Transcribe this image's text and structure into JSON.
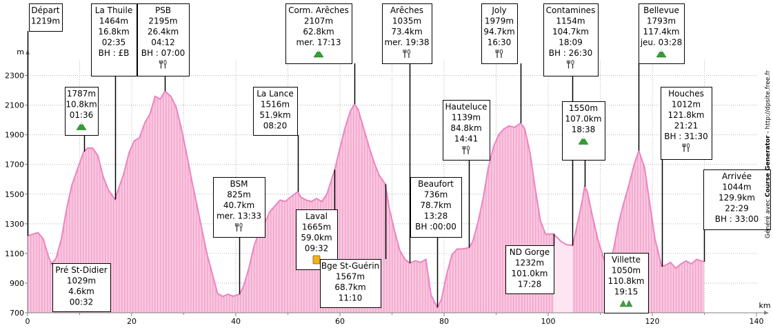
{
  "chart_data": {
    "type": "area",
    "title": "",
    "xlabel": "km",
    "ylabel": "m",
    "xlim": [
      0,
      140
    ],
    "ylim": [
      700,
      2400
    ],
    "xticks": [
      0,
      20,
      40,
      60,
      80,
      100,
      120,
      140
    ],
    "yticks": [
      700,
      900,
      1100,
      1300,
      1500,
      1700,
      1900,
      2100,
      2300
    ],
    "grid": true,
    "colors": {
      "fill": "#f9c8e0",
      "fill_dark": "#f2a6cc",
      "line": "#ee82c0",
      "grid": "#b0b0b0",
      "frame": "#808080",
      "marker": "#000000",
      "section_pale": "#fde6f1"
    },
    "profile": {
      "x": [
        0,
        1,
        2,
        3,
        4,
        4.6,
        5.5,
        6.5,
        7.5,
        8.5,
        9.5,
        10.8,
        11.5,
        12.5,
        13.5,
        14.5,
        15.5,
        16.8,
        17.5,
        18.5,
        19.5,
        20.5,
        21.5,
        22.5,
        23.5,
        24.5,
        25.5,
        26.4,
        27.5,
        28.5,
        29.5,
        30.5,
        31.5,
        32.5,
        33.5,
        34.5,
        35.5,
        36.5,
        37.5,
        38.5,
        39.5,
        40.7,
        41.5,
        42.5,
        43.5,
        44.5,
        45.5,
        46.5,
        47.5,
        48.5,
        49.5,
        50.5,
        51.9,
        52.5,
        53.5,
        54.5,
        55.5,
        56.5,
        57.5,
        59.0,
        60,
        61,
        62,
        62.8,
        63.5,
        64.5,
        65.5,
        66.5,
        67.5,
        68.7,
        69.5,
        70.5,
        71.5,
        72.5,
        73.4,
        74.5,
        75.5,
        76.5,
        77.5,
        78.7,
        79.5,
        80.5,
        81.5,
        82.5,
        83.5,
        84.8,
        85.5,
        86.5,
        87.5,
        88.5,
        89.5,
        90.5,
        91.5,
        92.5,
        93.5,
        94.7,
        95.5,
        96.5,
        97.5,
        98.5,
        99.5,
        101.0,
        102.5,
        103.5,
        104.7,
        105.5,
        106.5,
        107.0,
        107.5,
        108.5,
        109.5,
        110.8,
        111.5,
        112.5,
        113.5,
        114.5,
        115.5,
        116.5,
        117.4,
        118.5,
        119.5,
        120.5,
        121.8,
        122.5,
        123.5,
        124.5,
        125.5,
        126.5,
        127.5,
        128.5,
        129.9
      ],
      "y": [
        1219,
        1230,
        1240,
        1200,
        1080,
        1029,
        1070,
        1200,
        1400,
        1560,
        1660,
        1787,
        1810,
        1810,
        1760,
        1620,
        1530,
        1464,
        1540,
        1640,
        1780,
        1860,
        1880,
        1980,
        2040,
        2160,
        2140,
        2195,
        2160,
        2090,
        1950,
        1780,
        1600,
        1430,
        1260,
        1090,
        960,
        830,
        810,
        825,
        812,
        825,
        880,
        1000,
        1150,
        1250,
        1300,
        1380,
        1420,
        1460,
        1450,
        1480,
        1516,
        1480,
        1460,
        1450,
        1470,
        1450,
        1500,
        1665,
        1810,
        1950,
        2060,
        2107,
        2070,
        1950,
        1830,
        1720,
        1630,
        1567,
        1400,
        1250,
        1120,
        1060,
        1035,
        1050,
        1040,
        1060,
        820,
        736,
        790,
        960,
        1090,
        1130,
        1130,
        1139,
        1180,
        1310,
        1470,
        1680,
        1820,
        1900,
        1940,
        1960,
        1950,
        1979,
        1940,
        1780,
        1540,
        1320,
        1230,
        1232,
        1180,
        1160,
        1154,
        1280,
        1450,
        1550,
        1520,
        1350,
        1200,
        1050,
        1010,
        1120,
        1300,
        1440,
        1560,
        1700,
        1793,
        1680,
        1440,
        1200,
        1012,
        1020,
        1040,
        1000,
        1030,
        1050,
        1030,
        1060,
        1044
      ]
    },
    "pale_section": [
      101.0,
      104.7
    ],
    "annotations": [
      {
        "lines": [
          "Départ",
          "1219m"
        ],
        "km": 0,
        "icon": ""
      },
      {
        "lines": [
          "La Thuile",
          "1464m",
          "16.8km",
          "02:35",
          "BH : £B"
        ],
        "km": 16.8,
        "icon": ""
      },
      {
        "lines": [
          "PSB",
          "2195m",
          "26.4km",
          "04:12",
          "BH : 07:00"
        ],
        "km": 26.4,
        "icon": "cutlery"
      },
      {
        "lines": [
          "Corm. Arêches",
          "2107m",
          "62.8km",
          "mer. 17:13"
        ],
        "km": 62.8,
        "icon": "mountain"
      },
      {
        "lines": [
          "Arêches",
          "1035m",
          "73.4km",
          "mer. 19:38"
        ],
        "km": 73.4,
        "icon": "cutlery"
      },
      {
        "lines": [
          "Joly",
          "1979m",
          "94.7km",
          "16:30"
        ],
        "km": 94.7,
        "icon": "cutlery"
      },
      {
        "lines": [
          "Contamines",
          "1154m",
          "104.7km",
          "18:09",
          "BH : 26:30"
        ],
        "km": 104.7,
        "icon": "cutlery"
      },
      {
        "lines": [
          "Bellevue",
          "1793m",
          "117.4km",
          "jeu. 03:28"
        ],
        "km": 117.4,
        "icon": "mountain"
      },
      {
        "lines": [
          "1787m",
          "10.8km",
          "01:36"
        ],
        "km": 10.8,
        "icon": "mountain"
      },
      {
        "lines": [
          "La Lance",
          "1516m",
          "51.9km",
          "08:20"
        ],
        "km": 51.9,
        "icon": ""
      },
      {
        "lines": [
          "Hauteluce",
          "1139m",
          "84.8km",
          "14:41"
        ],
        "km": 84.8,
        "icon": "cutlery"
      },
      {
        "lines": [
          "1550m",
          "107.0km",
          "18:38"
        ],
        "km": 107.0,
        "icon": "mountain"
      },
      {
        "lines": [
          "Houches",
          "1012m",
          "121.8km",
          "21:21",
          "BH : 31:30"
        ],
        "km": 121.8,
        "icon": "cutlery"
      },
      {
        "lines": [
          "BSM",
          "825m",
          "40.7km",
          "mer. 13:33"
        ],
        "km": 40.7,
        "icon": "cutlery"
      },
      {
        "lines": [
          "Laval",
          "1665m",
          "59.0km",
          "09:32"
        ],
        "km": 59.0,
        "icon": "drink"
      },
      {
        "lines": [
          "Beaufort",
          "736m",
          "78.7km",
          "13:28",
          "BH :00:00"
        ],
        "km": 78.7,
        "icon": ""
      },
      {
        "lines": [
          "Arrivée",
          "1044m",
          "129.9km",
          "22:29",
          "BH : 33:00"
        ],
        "km": 129.9,
        "icon": ""
      },
      {
        "lines": [
          "Pré St-Didier",
          "1029m",
          "4.6km",
          "00:32"
        ],
        "km": 4.6,
        "icon": ""
      },
      {
        "lines": [
          "Bge St-Guérin",
          "1567m",
          "68.7km",
          "11:10"
        ],
        "km": 68.7,
        "icon": ""
      },
      {
        "lines": [
          "ND Gorge",
          "1232m",
          "101.0km",
          "17:28"
        ],
        "km": 101.0,
        "icon": ""
      },
      {
        "lines": [
          "Villette",
          "1050m",
          "110.8km",
          "19:15"
        ],
        "km": 110.8,
        "icon": "flag"
      }
    ],
    "credit": [
      "Généré avec ",
      "Course Generator",
      " - http://dpsite.free.fr"
    ]
  }
}
